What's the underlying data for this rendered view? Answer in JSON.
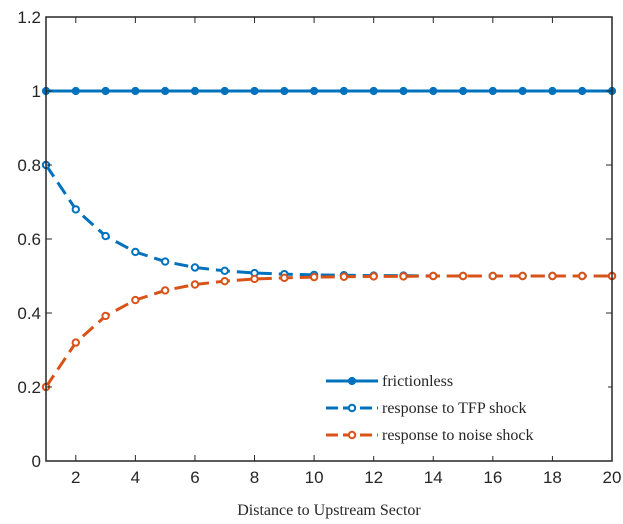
{
  "chart_data": {
    "type": "line",
    "title": "",
    "xlabel": "Distance to Upstream Sector",
    "ylabel": "",
    "xlim": [
      1,
      20
    ],
    "ylim": [
      0,
      1.2
    ],
    "xticks": [
      2,
      4,
      6,
      8,
      10,
      12,
      14,
      16,
      18,
      20
    ],
    "yticks": [
      0,
      0.2,
      0.4,
      0.6,
      0.8,
      1,
      1.2
    ],
    "ytick_labels": [
      "0",
      "0.2",
      "0.4",
      "0.6",
      "0.8",
      "1",
      "1.2"
    ],
    "grid": false,
    "legend_position": "bottom-right",
    "x": [
      1,
      2,
      3,
      4,
      5,
      6,
      7,
      8,
      9,
      10,
      11,
      12,
      13,
      14,
      15,
      16,
      17,
      18,
      19,
      20
    ],
    "series": [
      {
        "name": "frictionless",
        "color": "#0072BD",
        "line_style": "solid",
        "marker": "filled-circle",
        "values": [
          1,
          1,
          1,
          1,
          1,
          1,
          1,
          1,
          1,
          1,
          1,
          1,
          1,
          1,
          1,
          1,
          1,
          1,
          1,
          1
        ]
      },
      {
        "name": "response to TFP shock",
        "color": "#0072BD",
        "line_style": "dashed",
        "marker": "open-circle",
        "values": [
          0.8,
          0.68,
          0.608,
          0.565,
          0.539,
          0.523,
          0.514,
          0.508,
          0.505,
          0.503,
          0.502,
          0.501,
          0.501,
          0.5,
          0.5,
          0.5,
          0.5,
          0.5,
          0.5,
          0.5
        ]
      },
      {
        "name": "response to noise shock",
        "color": "#D95319",
        "line_style": "dashed",
        "marker": "open-circle",
        "values": [
          0.2,
          0.32,
          0.392,
          0.435,
          0.461,
          0.477,
          0.486,
          0.492,
          0.495,
          0.497,
          0.498,
          0.499,
          0.499,
          0.5,
          0.5,
          0.5,
          0.5,
          0.5,
          0.5,
          0.5
        ]
      }
    ]
  }
}
